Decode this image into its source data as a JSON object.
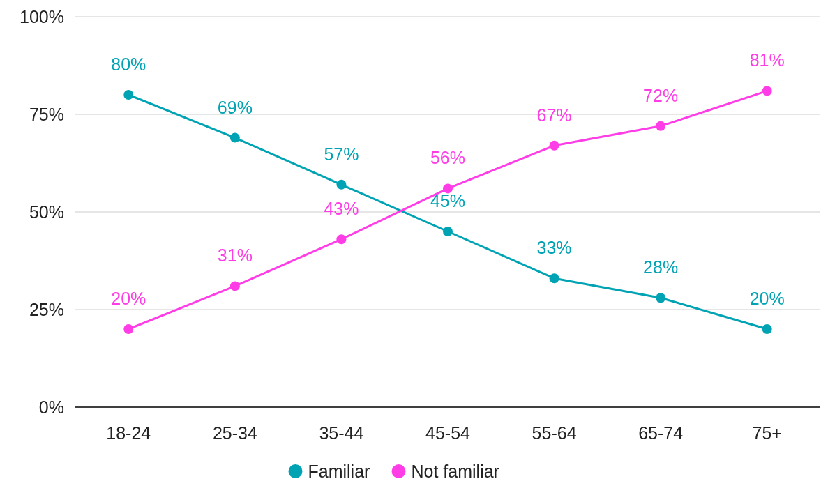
{
  "chart_data": {
    "type": "line",
    "categories": [
      "18-24",
      "25-34",
      "35-44",
      "45-54",
      "55-64",
      "65-74",
      "75+"
    ],
    "series": [
      {
        "name": "Familiar",
        "color": "#00a3b4",
        "values": [
          80,
          69,
          57,
          45,
          33,
          28,
          20
        ],
        "value_labels": [
          "80%",
          "69%",
          "57%",
          "45%",
          "33%",
          "28%",
          "20%"
        ]
      },
      {
        "name": "Not familiar",
        "color": "#ff3de6",
        "values": [
          20,
          31,
          43,
          56,
          67,
          72,
          81
        ],
        "value_labels": [
          "20%",
          "31%",
          "43%",
          "56%",
          "67%",
          "72%",
          "81%"
        ]
      }
    ],
    "ylim": [
      0,
      100
    ],
    "yticks": [
      {
        "value": 0,
        "label": "0%"
      },
      {
        "value": 25,
        "label": "25%"
      },
      {
        "value": 50,
        "label": "50%"
      },
      {
        "value": 75,
        "label": "75%"
      },
      {
        "value": 100,
        "label": "100%"
      }
    ],
    "grid": "y",
    "legend": "bottom",
    "marker": "circle",
    "line_style": "solid"
  }
}
